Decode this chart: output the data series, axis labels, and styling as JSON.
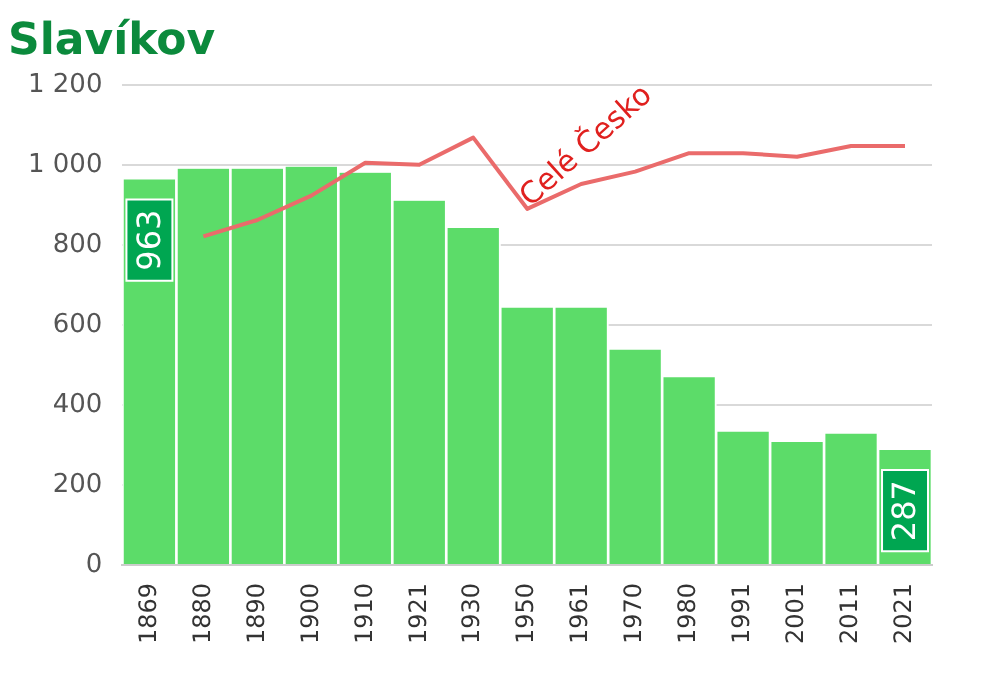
{
  "chart_data": {
    "type": "bar",
    "title": "Slavíkov",
    "categories": [
      "1869",
      "1880",
      "1890",
      "1900",
      "1910",
      "1921",
      "1930",
      "1950",
      "1961",
      "1970",
      "1980",
      "1991",
      "2001",
      "2011",
      "2021"
    ],
    "series": [
      {
        "color": "#5cdc69",
        "values": [
          963,
          990,
          990,
          995,
          980,
          910,
          842,
          643,
          643,
          538,
          469,
          333,
          307,
          328,
          287
        ],
        "value_labels": [
          "963",
          null,
          null,
          null,
          null,
          null,
          null,
          null,
          null,
          null,
          null,
          null,
          null,
          null,
          "287"
        ]
      },
      {
        "name": "Celé Česko",
        "type": "line",
        "color": "#ea6b6b",
        "values": [
          null,
          821,
          862,
          923,
          1005,
          1000,
          1068,
          890,
          952,
          983,
          1029,
          1029,
          1020,
          1047,
          1047
        ]
      }
    ],
    "ylim": [
      0,
      1200
    ],
    "yticks": [
      0,
      200,
      400,
      600,
      800,
      {
        "value": 1000,
        "label": "1 000"
      },
      {
        "value": 1200,
        "label": "1 200"
      }
    ],
    "grid": "y",
    "legend": false
  }
}
